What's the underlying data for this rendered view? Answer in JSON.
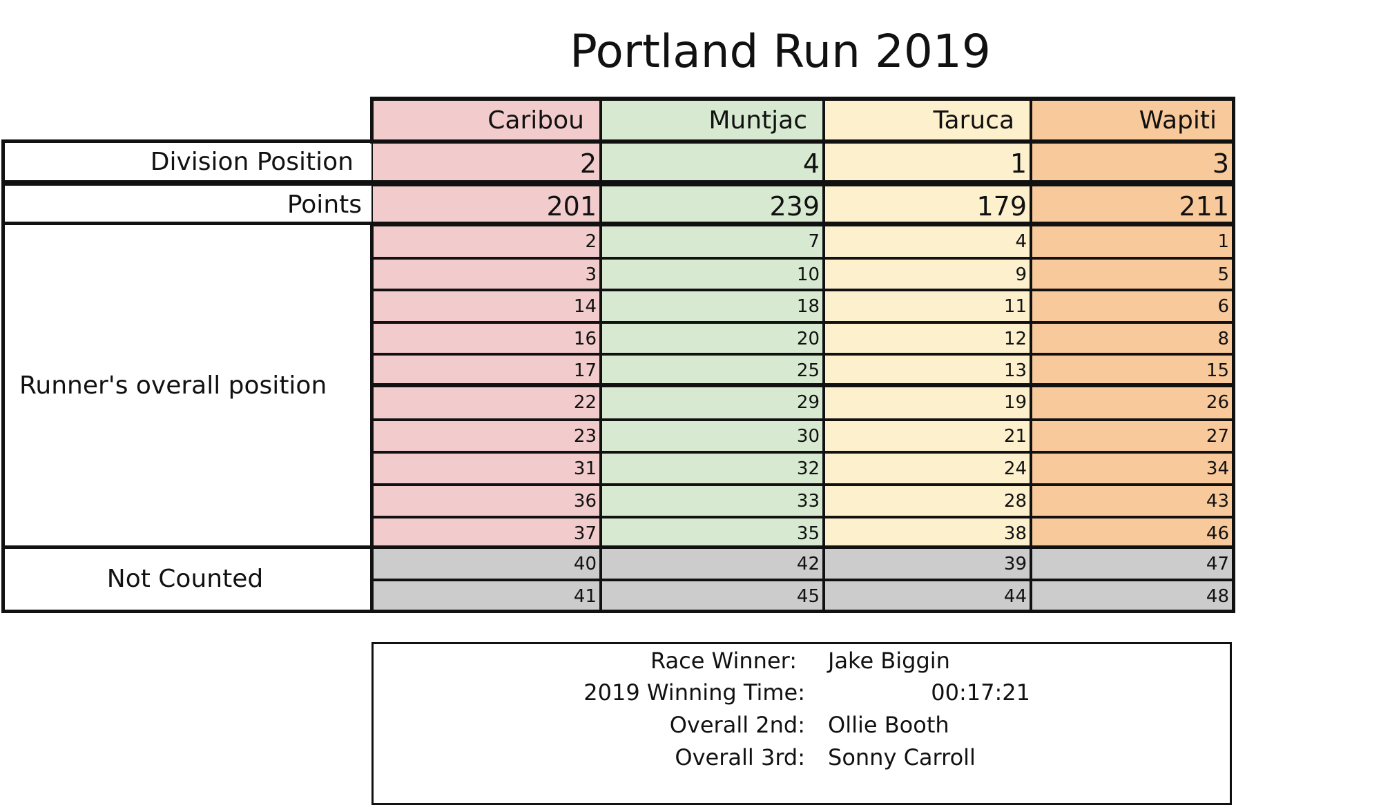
{
  "title": "Portland Run 2019",
  "teams": [
    {
      "name": "Caribou",
      "color": "#f2cbcc",
      "division_position": "2",
      "points": "201",
      "counted": [
        "2",
        "3",
        "14",
        "16",
        "17",
        "22",
        "23",
        "31",
        "36",
        "37"
      ],
      "not_counted": [
        "40",
        "41"
      ]
    },
    {
      "name": "Muntjac",
      "color": "#d7ead1",
      "division_position": "4",
      "points": "239",
      "counted": [
        "7",
        "10",
        "18",
        "20",
        "25",
        "29",
        "30",
        "32",
        "33",
        "35"
      ],
      "not_counted": [
        "42",
        "45"
      ]
    },
    {
      "name": "Taruca",
      "color": "#fdf0cd",
      "division_position": "1",
      "points": "179",
      "counted": [
        "4",
        "9",
        "11",
        "12",
        "13",
        "19",
        "21",
        "24",
        "28",
        "38"
      ],
      "not_counted": [
        "39",
        "44"
      ]
    },
    {
      "name": "Wapiti",
      "color": "#f8c99b",
      "division_position": "3",
      "points": "211",
      "counted": [
        "1",
        "5",
        "6",
        "8",
        "15",
        "26",
        "27",
        "34",
        "43",
        "46"
      ],
      "not_counted": [
        "47",
        "48"
      ]
    }
  ],
  "row_labels": {
    "division_position": "Division Position",
    "points": "Points",
    "runner_position": "Runner's overall position",
    "not_counted": "Not Counted"
  },
  "not_counted_color": "#cccccc",
  "summary": {
    "race_winner_label": "Race Winner:",
    "race_winner": "Jake Biggin",
    "winning_time_label": "2019 Winning Time:",
    "winning_time": "00:17:21",
    "second_label": "Overall 2nd:",
    "second": "Ollie Booth",
    "third_label": "Overall 3rd:",
    "third": "Sonny Carroll"
  }
}
